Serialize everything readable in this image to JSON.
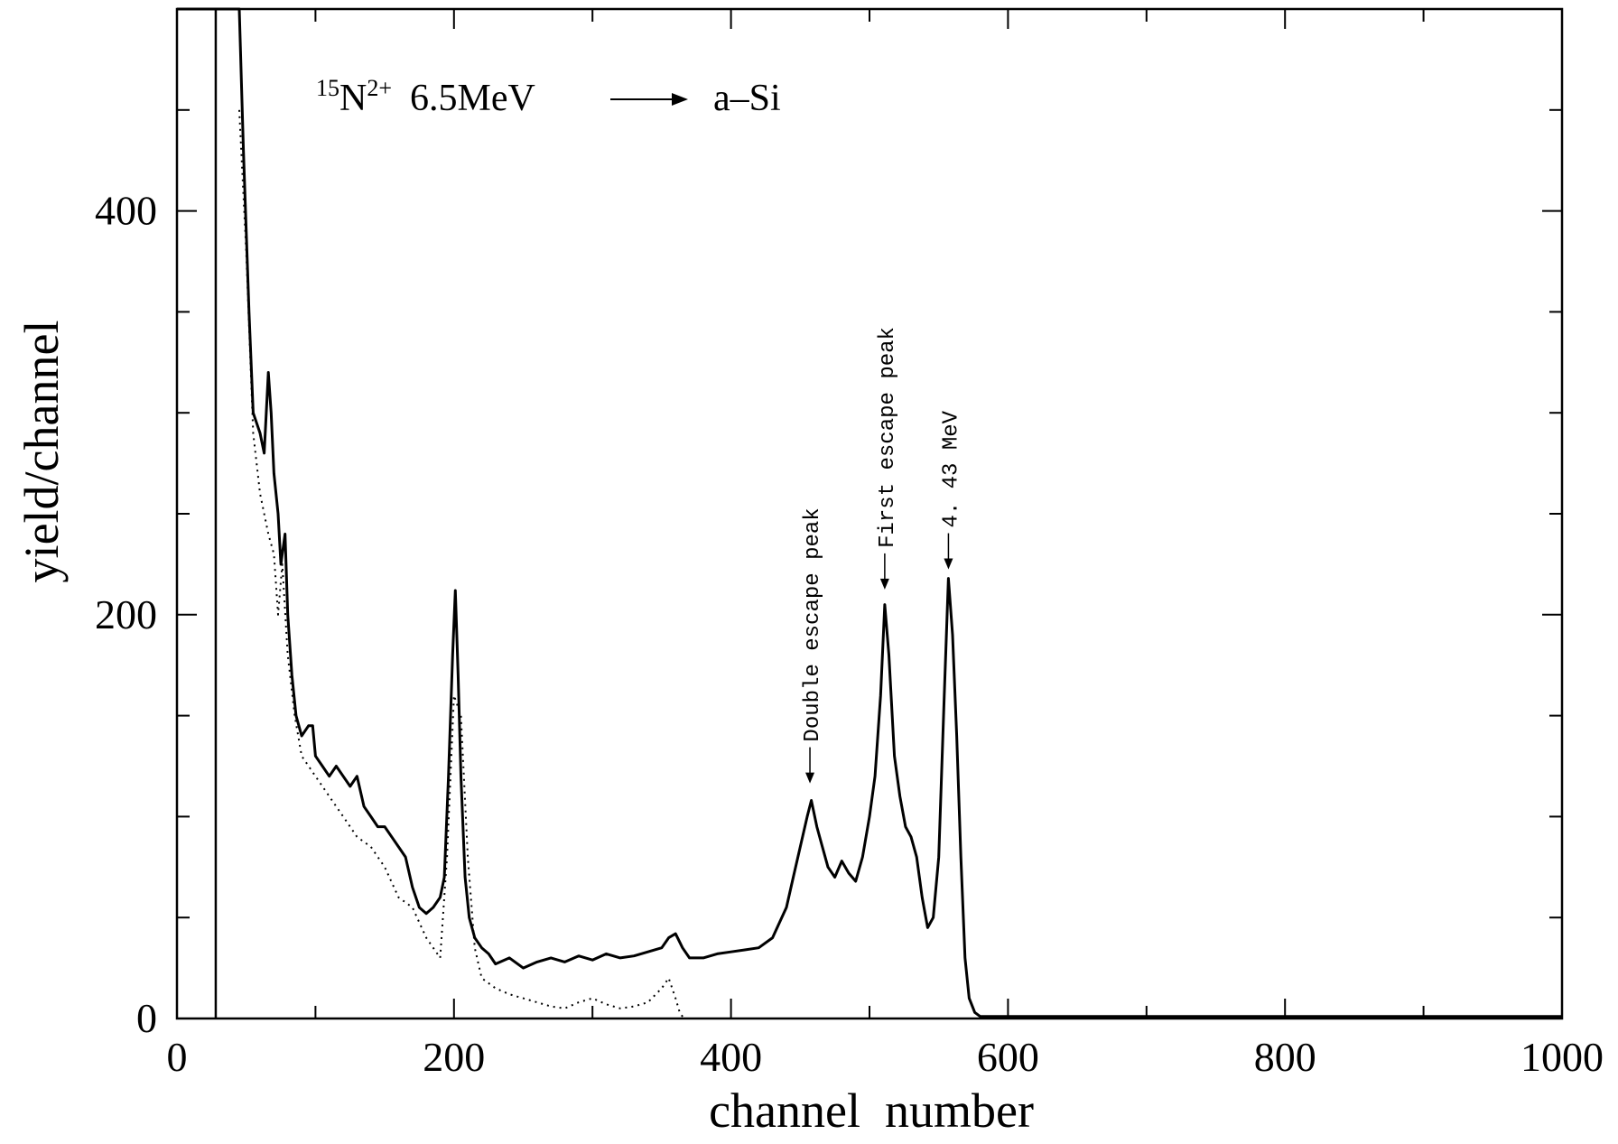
{
  "chart_data": {
    "type": "line",
    "title": {
      "mass": "15",
      "element": "N",
      "charge": "2+",
      "energy": "6.5MeV",
      "target": "a–Si"
    },
    "xlabel": "channel  number",
    "ylabel": "yield/channel",
    "xlim": [
      0,
      1000
    ],
    "ylim": [
      0,
      500
    ],
    "xticks": [
      0,
      200,
      400,
      600,
      800,
      1000
    ],
    "xtick_labels": [
      "0",
      "200",
      "400",
      "600",
      "800",
      "1000"
    ],
    "yticks": [
      0,
      200,
      400
    ],
    "ytick_labels": [
      "0",
      "200",
      "400"
    ],
    "grid": false,
    "legend": "none",
    "annotations": [
      {
        "label": "Double escape peak",
        "x": 457,
        "y": 112
      },
      {
        "label": "First escape peak",
        "x": 511,
        "y": 208
      },
      {
        "label": "4. 43 MeV",
        "x": 557,
        "y": 218
      }
    ],
    "vertical_marker_x": 28,
    "series": [
      {
        "style": "solid",
        "x": [
          0,
          45,
          48,
          50,
          52,
          55,
          60,
          63,
          66,
          68,
          70,
          73,
          75,
          78,
          80,
          83,
          86,
          90,
          95,
          98,
          100,
          105,
          110,
          115,
          120,
          125,
          130,
          135,
          140,
          145,
          150,
          155,
          160,
          165,
          170,
          175,
          180,
          185,
          190,
          193,
          196,
          199,
          201,
          203,
          205,
          208,
          211,
          215,
          220,
          225,
          230,
          240,
          250,
          260,
          270,
          280,
          290,
          300,
          310,
          320,
          330,
          340,
          350,
          355,
          360,
          365,
          370,
          380,
          390,
          400,
          410,
          420,
          430,
          440,
          445,
          450,
          455,
          458,
          462,
          466,
          470,
          475,
          480,
          485,
          490,
          495,
          500,
          504,
          508,
          511,
          514,
          518,
          522,
          526,
          530,
          534,
          538,
          542,
          546,
          550,
          554,
          557,
          560,
          563,
          566,
          569,
          572,
          576,
          580,
          600,
          700,
          800,
          1000
        ],
        "y": [
          500,
          500,
          430,
          390,
          350,
          300,
          290,
          280,
          320,
          300,
          270,
          250,
          225,
          240,
          200,
          170,
          150,
          140,
          145,
          145,
          130,
          125,
          120,
          125,
          120,
          115,
          120,
          105,
          100,
          95,
          95,
          90,
          85,
          80,
          65,
          55,
          52,
          55,
          60,
          70,
          120,
          180,
          212,
          170,
          120,
          70,
          50,
          40,
          35,
          32,
          27,
          30,
          25,
          28,
          30,
          28,
          31,
          29,
          32,
          30,
          31,
          33,
          35,
          40,
          42,
          35,
          30,
          30,
          32,
          33,
          34,
          35,
          40,
          55,
          70,
          85,
          100,
          108,
          95,
          85,
          75,
          70,
          78,
          72,
          68,
          80,
          100,
          120,
          160,
          205,
          180,
          130,
          110,
          95,
          90,
          80,
          60,
          45,
          50,
          80,
          160,
          218,
          190,
          140,
          80,
          30,
          10,
          3,
          1,
          1,
          1,
          1,
          1
        ]
      },
      {
        "style": "dotted",
        "x": [
          45,
          50,
          55,
          60,
          66,
          70,
          73,
          76,
          80,
          85,
          90,
          100,
          110,
          120,
          130,
          140,
          150,
          160,
          170,
          180,
          185,
          190,
          195,
          200,
          205,
          210,
          215,
          220,
          230,
          240,
          250,
          260,
          270,
          280,
          290,
          300,
          310,
          320,
          330,
          340,
          350,
          355,
          360,
          363,
          366
        ],
        "y": [
          450,
          380,
          290,
          260,
          240,
          230,
          200,
          225,
          180,
          150,
          130,
          120,
          110,
          100,
          90,
          85,
          75,
          60,
          55,
          40,
          35,
          30,
          80,
          160,
          150,
          80,
          35,
          20,
          15,
          12,
          10,
          8,
          6,
          5,
          8,
          10,
          7,
          5,
          6,
          8,
          15,
          20,
          10,
          3,
          0
        ]
      }
    ]
  }
}
